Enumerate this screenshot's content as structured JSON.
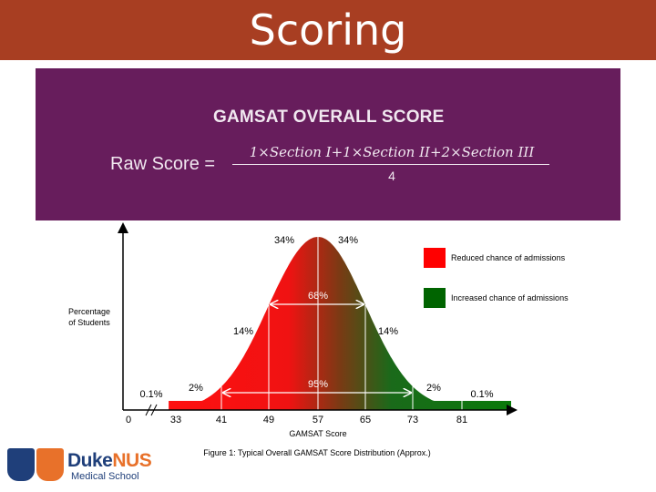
{
  "header": {
    "title": "Scoring"
  },
  "formula": {
    "title": "GAMSAT OVERALL SCORE",
    "lhs": "Raw Score =",
    "numerator": "1×Section I+1×Section II+2×Section III",
    "denominator": "4"
  },
  "chart_data": {
    "type": "area",
    "title": "",
    "xlabel": "GAMSAT Score",
    "ylabel": "Percentage of Students",
    "x_ticks": [
      0,
      33,
      41,
      49,
      57,
      65,
      73,
      81
    ],
    "distribution": {
      "mean": 57,
      "sd": 8
    },
    "segment_percentages": [
      {
        "label": "0.1%",
        "from": 0,
        "to": 33
      },
      {
        "label": "2%",
        "from": 33,
        "to": 41
      },
      {
        "label": "14%",
        "from": 41,
        "to": 49
      },
      {
        "label": "34%",
        "from": 49,
        "to": 57
      },
      {
        "label": "34%",
        "from": 57,
        "to": 65
      },
      {
        "label": "14%",
        "from": 65,
        "to": 73
      },
      {
        "label": "2%",
        "from": 73,
        "to": 81
      },
      {
        "label": "0.1%",
        "from": 81,
        "to": 89
      }
    ],
    "intervals": [
      {
        "label": "68%",
        "from": 49,
        "to": 65
      },
      {
        "label": "95%",
        "from": 41,
        "to": 73
      }
    ],
    "legend": [
      {
        "label": "Reduced chance of admissions",
        "color": "#ff0000"
      },
      {
        "label": "Increased chance of admissions",
        "color": "#006400"
      }
    ],
    "legend_position": "top-right",
    "caption": "Figure 1: Typical Overall GAMSAT Score Distribution (Approx.)"
  },
  "logo": {
    "brand_left": "Duke",
    "brand_right": "NUS",
    "subtitle": "Medical School"
  }
}
